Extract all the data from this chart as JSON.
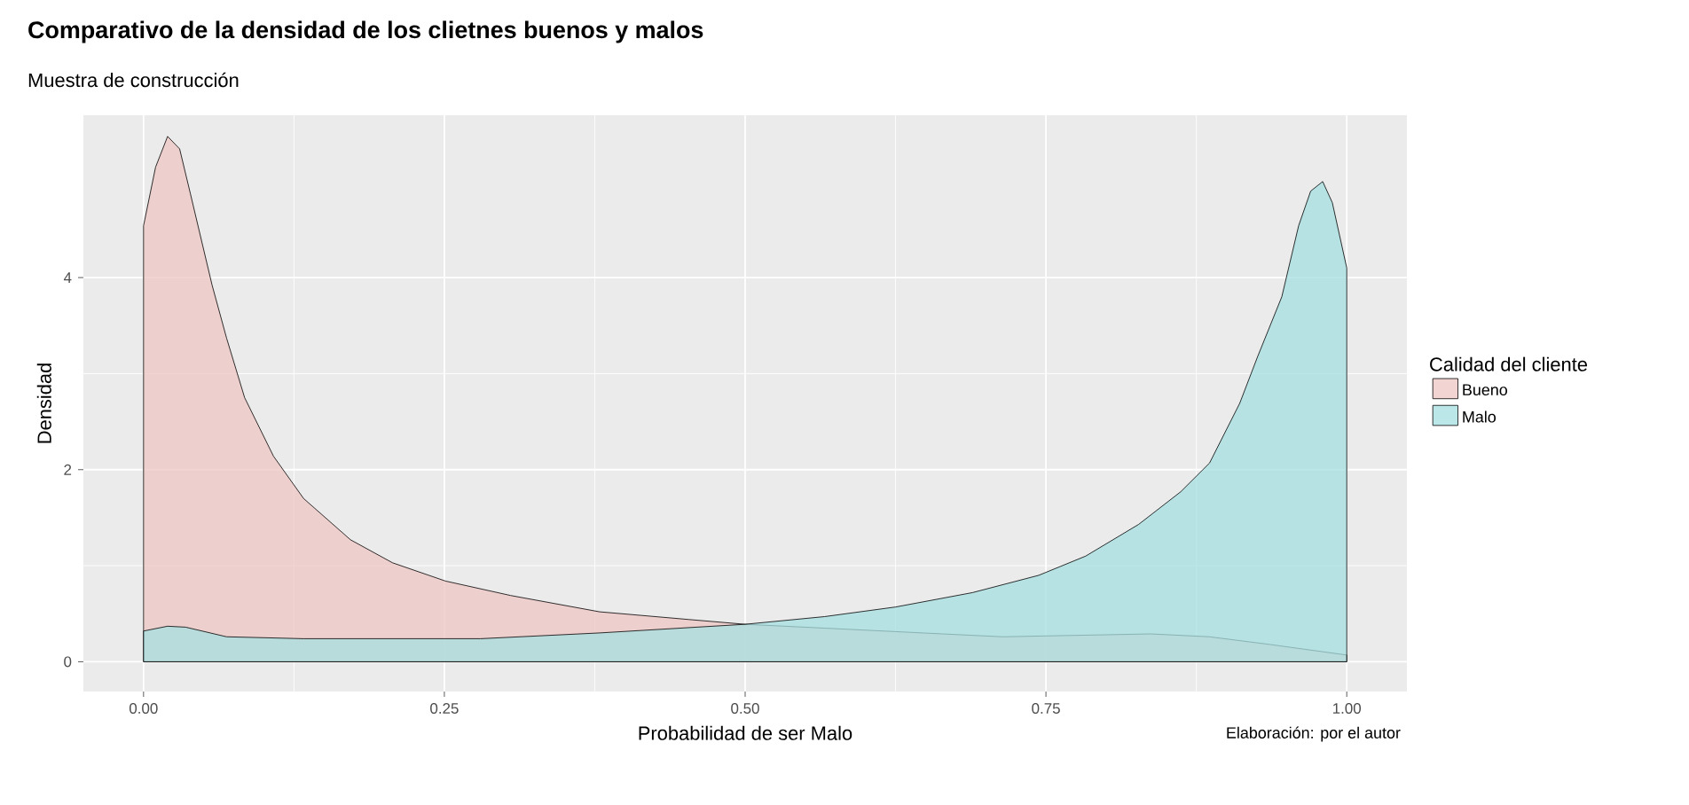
{
  "chart_data": {
    "type": "area",
    "title": "Comparativo de la densidad de los clietnes buenos y malos",
    "subtitle": "Muestra de construcción",
    "xlabel": "Probabilidad de ser Malo",
    "ylabel": "Densidad",
    "legend_title": "Calidad del cliente",
    "annotations": [
      "Elaboración: por el autor"
    ],
    "series": [
      {
        "name": "Bueno",
        "color": "#eec6c3",
        "x": [
          0,
          0.01,
          0.02,
          0.03,
          0.039,
          0.057,
          0.069,
          0.084,
          0.108,
          0.133,
          0.172,
          0.207,
          0.251,
          0.305,
          0.379,
          0.453,
          0.5,
          0.566,
          0.664,
          0.714,
          0.837,
          0.886,
          0.936,
          1.0
        ],
        "values": [
          4.54,
          5.15,
          5.47,
          5.34,
          4.87,
          3.92,
          3.37,
          2.75,
          2.14,
          1.7,
          1.27,
          1.03,
          0.84,
          0.69,
          0.52,
          0.44,
          0.39,
          0.35,
          0.29,
          0.26,
          0.29,
          0.26,
          0.18,
          0.07
        ]
      },
      {
        "name": "Malo",
        "color": "#a6dfe0",
        "x": [
          0,
          0.02,
          0.035,
          0.069,
          0.133,
          0.28,
          0.379,
          0.5,
          0.566,
          0.625,
          0.689,
          0.744,
          0.783,
          0.827,
          0.862,
          0.886,
          0.911,
          0.926,
          0.946,
          0.96,
          0.97,
          0.98,
          0.988,
          1.0
        ],
        "values": [
          0.32,
          0.37,
          0.36,
          0.26,
          0.24,
          0.24,
          0.3,
          0.39,
          0.47,
          0.57,
          0.72,
          0.9,
          1.1,
          1.43,
          1.77,
          2.07,
          2.69,
          3.18,
          3.8,
          4.54,
          4.9,
          5.0,
          4.78,
          4.1
        ]
      }
    ],
    "xlim": [
      -0.05,
      1.05
    ],
    "ylim": [
      -0.31,
      5.69
    ],
    "xticks": [
      {
        "value": 0,
        "label": "0.00"
      },
      {
        "value": 0.25,
        "label": "0.25"
      },
      {
        "value": 0.5,
        "label": "0.50"
      },
      {
        "value": 0.75,
        "label": "0.75"
      },
      {
        "value": 1,
        "label": "1.00"
      }
    ],
    "yticks": [
      0,
      2,
      4
    ],
    "grid": true,
    "legend": "right"
  }
}
